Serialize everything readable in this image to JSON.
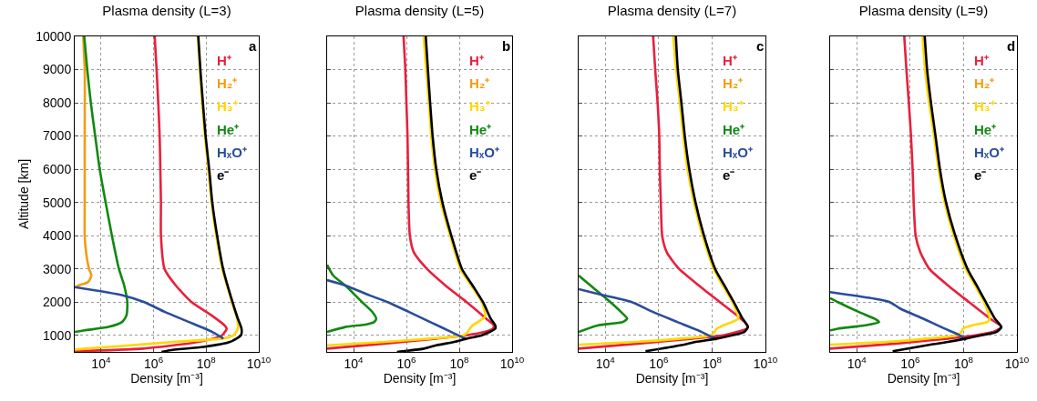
{
  "chart_data": [
    {
      "type": "line",
      "title": "Plasma density (L=3)",
      "xlabel": "Density [m⁻³]",
      "ylabel": "Altitude [km]",
      "log": "x",
      "grid": true,
      "legend": "top right",
      "annotations": [
        "a"
      ],
      "xlim": [
        1000,
        10000000000
      ],
      "xticks": [
        {
          "value": 10000,
          "label": "10$^{4}$"
        },
        {
          "value": 1000000,
          "label": "10$^{6}$"
        },
        {
          "value": 100000000,
          "label": "10$^{8}$"
        },
        {
          "value": 10000000000,
          "label": "10$^{10}$"
        }
      ],
      "ylim": [
        500,
        10000
      ],
      "yticks": [
        1000,
        2000,
        3000,
        4000,
        5000,
        6000,
        7000,
        8000,
        9000,
        10000
      ],
      "series": [
        {
          "name": "H⁺",
          "color": "#e8203c",
          "x": [
            1100000.0,
            1300000.0,
            1500000.0,
            1700000.0,
            1800000.0,
            1900000.0,
            1900000.0,
            2600000.0,
            7000000.0,
            28000000.0,
            160000000.0,
            500000000.0,
            600000000.0,
            400000000.0,
            50000000.0,
            400000.0,
            1000.0
          ],
          "values": [
            10000,
            9000,
            8000,
            7000,
            6000,
            5000,
            4000,
            3000,
            2500,
            2000,
            1600,
            1300,
            1200,
            1000,
            800,
            600,
            520
          ]
        },
        {
          "name": "H₂⁺",
          "color": "#f39c12",
          "x": [
            2100.0,
            2400.0,
            2400.0,
            2400.0,
            2400.0,
            2700.0,
            3500.0,
            4300.0,
            3200.0,
            1400.0,
            1000.0
          ],
          "values": [
            10000,
            9000,
            7000,
            5000,
            4000,
            3500,
            3000,
            2800,
            2600,
            2500,
            2430
          ]
        },
        {
          "name": "H₃⁺",
          "color": "#ffd700",
          "x": [
            48000000.0,
            58000000.0,
            70000000.0,
            90000000.0,
            120000000.0,
            160000000.0,
            240000000.0,
            410000000.0,
            950000000.0,
            1500000000.0,
            1600000000.0,
            1100000000.0,
            380000000.0,
            6000000.0,
            130000.0,
            2500.0,
            1000.0
          ],
          "values": [
            10000,
            9000,
            8000,
            7000,
            6000,
            5000,
            4000,
            3000,
            2000,
            1500,
            1200,
            1000,
            900,
            800,
            700,
            600,
            570
          ]
        },
        {
          "name": "He⁺",
          "color": "#118811",
          "x": [
            2300.0,
            3000.0,
            4100.0,
            6000.0,
            8900.0,
            15000.0,
            26000.0,
            48000.0,
            76000.0,
            100000.0,
            93000.0,
            63000.0,
            19000.0,
            2400.0,
            1000.0
          ],
          "values": [
            10000,
            9000,
            8000,
            7000,
            6000,
            5000,
            4000,
            3000,
            2500,
            2000,
            1600,
            1400,
            1250,
            1150,
            1100
          ]
        },
        {
          "name": "HₓO⁺",
          "color": "#2a4d9b",
          "x": [
            1000.0,
            70000.0,
            440000.0,
            2700000.0,
            22000000.0,
            170000000.0,
            450000000.0
          ],
          "values": [
            2450,
            2200,
            2000,
            1700,
            1400,
            1100,
            900
          ]
        },
        {
          "name": "e⁻",
          "color": "#000000",
          "x": [
            50000000.0,
            60000000.0,
            75000000.0,
            95000000.0,
            130000000.0,
            170000000.0,
            260000000.0,
            440000000.0,
            1000000000.0,
            1600000000.0,
            2200000000.0,
            2100000000.0,
            800000000.0,
            80000000.0,
            4000000.0,
            2000000.0
          ],
          "values": [
            10000,
            9000,
            8000,
            7000,
            6000,
            5000,
            4000,
            3000,
            2000,
            1500,
            1200,
            1000,
            800,
            650,
            550,
            500
          ]
        }
      ]
    },
    {
      "type": "line",
      "title": "Plasma density (L=5)",
      "xlabel": "Density [m⁻³]",
      "log": "x",
      "grid": true,
      "legend": "top right",
      "annotations": [
        "b"
      ],
      "tick_labels": "x",
      "xlim": [
        1000,
        10000000000
      ],
      "xticks": [
        {
          "value": 10000,
          "label": "10$^{4}$"
        },
        {
          "value": 1000000,
          "label": "10$^{6}$"
        },
        {
          "value": 100000000,
          "label": "10$^{8}$"
        },
        {
          "value": 10000000000,
          "label": "10$^{10}$"
        }
      ],
      "ylim": [
        500,
        10000
      ],
      "yticks": [
        1000,
        2000,
        3000,
        4000,
        5000,
        6000,
        7000,
        8000,
        9000,
        10000
      ],
      "series": [
        {
          "name": "H⁺",
          "color": "#e8203c",
          "x": [
            780000.0,
            910000.0,
            1000000.0,
            1100000.0,
            1150000.0,
            1200000.0,
            1350000.0,
            1900000.0,
            6000000.0,
            30000000.0,
            190000000.0,
            1050000000.0,
            2000000000.0,
            1900000000.0,
            900000000.0,
            190000000.0,
            13500000.0,
            150000.0,
            1000.0
          ],
          "values": [
            10000,
            9000,
            8000,
            7000,
            6000,
            5000,
            4000,
            3500,
            3000,
            2500,
            2000,
            1500,
            1300,
            1200,
            1100,
            1000,
            900,
            750,
            600
          ]
        },
        {
          "name": "H₂⁺",
          "color": "#f39c12"
        },
        {
          "name": "H₃⁺",
          "color": "#ffd700",
          "x": [
            4500000.0,
            5600000.0,
            7100000.0,
            8700000.0,
            12000000.0,
            20000000.0,
            45000000.0,
            110000000.0,
            280000000.0,
            710000000.0,
            950000000.0,
            320000000.0,
            250000000.0,
            210000000.0,
            145000000.0,
            7900000.0,
            150000.0,
            1000.0
          ],
          "values": [
            10000,
            9000,
            8000,
            7000,
            6000,
            5000,
            4000,
            3000,
            2500,
            2000,
            1570,
            1300,
            1200,
            1100,
            1000,
            900,
            800,
            700
          ]
        },
        {
          "name": "He⁺",
          "color": "#118811",
          "x": [
            1000.0,
            1700.0,
            4900.0,
            21000.0,
            52000.0,
            72000.0,
            60000.0,
            31000.0,
            4900.0,
            1000.0
          ],
          "values": [
            3120,
            2800,
            2500,
            2000,
            1700,
            1500,
            1400,
            1330,
            1250,
            1100
          ]
        },
        {
          "name": "HₓO⁺",
          "color": "#2a4d9b",
          "x": [
            1000.0,
            4900.0,
            41000.0,
            195000.0,
            1260000.0,
            7900000.0,
            50000000.0,
            170000000.0
          ],
          "values": [
            2660,
            2500,
            2200,
            2000,
            1700,
            1400,
            1100,
            900
          ]
        },
        {
          "name": "e⁻",
          "color": "#000000",
          "x": [
            5400000.0,
            6500000.0,
            7900000.0,
            9800000.0,
            13500000.0,
            23000000.0,
            50000000.0,
            126000000.0,
            320000000.0,
            790000000.0,
            1550000000.0,
            2300000000.0,
            2300000000.0,
            710000000.0,
            190000000.0,
            65000000.0,
            13500000.0,
            4700000.0,
            440000.0
          ],
          "values": [
            10000,
            9000,
            8000,
            7000,
            6000,
            5000,
            4000,
            3000,
            2500,
            2000,
            1500,
            1300,
            1200,
            1000,
            900,
            800,
            700,
            600,
            500
          ]
        }
      ]
    },
    {
      "type": "line",
      "title": "Plasma density (L=7)",
      "xlabel": "Density [m⁻³]",
      "log": "x",
      "grid": true,
      "legend": "top right",
      "annotations": [
        "c"
      ],
      "tick_labels": "x",
      "xlim": [
        1000,
        10000000000
      ],
      "xticks": [
        {
          "value": 10000,
          "label": "10$^{4}$"
        },
        {
          "value": 1000000,
          "label": "10$^{6}$"
        },
        {
          "value": 100000000,
          "label": "10$^{8}$"
        },
        {
          "value": 10000000000,
          "label": "10$^{10}$"
        }
      ],
      "ylim": [
        500,
        10000
      ],
      "yticks": [
        1000,
        2000,
        3000,
        4000,
        5000,
        6000,
        7000,
        8000,
        9000,
        10000
      ],
      "series": [
        {
          "name": "H⁺",
          "color": "#e8203c",
          "x": [
            620000.0,
            740000.0,
            910000.0,
            1050000.0,
            1100000.0,
            1200000.0,
            1350000.0,
            2000000.0,
            5800000.0,
            32000000.0,
            195000000.0,
            1200000000.0,
            2100000000.0,
            2000000000.0,
            260000000.0,
            19000000.0,
            170000.0,
            1000.0
          ],
          "values": [
            10000,
            9000,
            8000,
            7000,
            6000,
            5000,
            4000,
            3500,
            3000,
            2500,
            2000,
            1500,
            1300,
            1200,
            1000,
            900,
            750,
            600
          ]
        },
        {
          "name": "H₂⁺",
          "color": "#f39c12"
        },
        {
          "name": "H₃⁺",
          "color": "#ffd700",
          "x": [
            3500000.0,
            4500000.0,
            6200000.0,
            8300000.0,
            12000000.0,
            21000000.0,
            44000000.0,
            115000000.0,
            250000000.0,
            580000000.0,
            950000000.0,
            260000000.0,
            150000000.0,
            120000000.0,
            89000000.0,
            6500000.0,
            130000.0,
            1000.0
          ],
          "values": [
            10000,
            9000,
            8000,
            7000,
            6000,
            5000,
            4000,
            3000,
            2500,
            2000,
            1500,
            1300,
            1200,
            1100,
            1000,
            900,
            800,
            720
          ]
        },
        {
          "name": "He⁺",
          "color": "#118811",
          "x": [
            1000.0,
            2800.0,
            15500.0,
            39000.0,
            66000.0,
            45000.0,
            5500.0,
            1000.0
          ],
          "values": [
            2800,
            2500,
            2000,
            1700,
            1500,
            1400,
            1300,
            1100
          ]
        },
        {
          "name": "HₓO⁺",
          "color": "#2a4d9b",
          "x": [
            1000.0,
            9300.0,
            98000.0,
            620000.0,
            5000000.0,
            41000000.0,
            150000000.0
          ],
          "values": [
            2390,
            2200,
            2000,
            1700,
            1400,
            1100,
            870
          ]
        },
        {
          "name": "e⁻",
          "color": "#000000",
          "x": [
            4400000.0,
            5200000.0,
            7100000.0,
            9500000.0,
            14000000.0,
            24000000.0,
            50000000.0,
            130000000.0,
            290000000.0,
            650000000.0,
            1400000000.0,
            2200000000.0,
            1600000000.0,
            560000000.0,
            150000000.0,
            24000000.0,
            6500000.0,
            320000.0
          ],
          "values": [
            10000,
            9000,
            8000,
            7000,
            6000,
            5000,
            4000,
            3000,
            2500,
            2000,
            1500,
            1250,
            1100,
            1000,
            900,
            800,
            700,
            520
          ]
        }
      ]
    },
    {
      "type": "line",
      "title": "Plasma density (L=9)",
      "xlabel": "Density [m⁻³]",
      "log": "x",
      "grid": true,
      "legend": "top right",
      "annotations": [
        "d"
      ],
      "tick_labels": "x",
      "xlim": [
        1000,
        10000000000
      ],
      "xticks": [
        {
          "value": 10000,
          "label": "10$^{4}$"
        },
        {
          "value": 1000000,
          "label": "10$^{6}$"
        },
        {
          "value": 100000000,
          "label": "10$^{8}$"
        },
        {
          "value": 10000000000,
          "label": "10$^{10}$"
        }
      ],
      "ylim": [
        500,
        10000
      ],
      "yticks": [
        1000,
        2000,
        3000,
        4000,
        5000,
        6000,
        7000,
        8000,
        9000,
        10000
      ],
      "series": [
        {
          "name": "H⁺",
          "color": "#e8203c",
          "x": [
            600000.0,
            720000.0,
            890000.0,
            1070000.0,
            1230000.0,
            1350000.0,
            1600000.0,
            2400000.0,
            5200000.0,
            26000000.0,
            160000000.0,
            1000000000.0,
            2600000000.0,
            1300000000.0,
            270000000.0,
            26000000.0,
            300000.0,
            1000.0
          ],
          "values": [
            10000,
            9000,
            8000,
            7000,
            6000,
            5000,
            4000,
            3500,
            3000,
            2500,
            2000,
            1500,
            1250,
            1100,
            1000,
            900,
            750,
            600
          ]
        },
        {
          "name": "H₂⁺",
          "color": "#f39c12"
        },
        {
          "name": "H₃⁺",
          "color": "#ffd700",
          "x": [
            2900000.0,
            3600000.0,
            5100000.0,
            7800000.0,
            11500000.0,
            19500000.0,
            43000000.0,
            120000000.0,
            270000000.0,
            590000000.0,
            950000000.0,
            780000000.0,
            210000000.0,
            95000000.0,
            83000000.0,
            56000000.0,
            4100000.0,
            130000.0,
            1000.0
          ],
          "values": [
            10000,
            9000,
            8000,
            7000,
            6000,
            5000,
            4000,
            3000,
            2500,
            2000,
            1500,
            1400,
            1300,
            1200,
            1100,
            1000,
            900,
            800,
            720
          ]
        },
        {
          "name": "He⁺",
          "color": "#118811",
          "x": [
            1000.0,
            1950.0,
            12000.0,
            46000.0,
            68000.0,
            21000.0,
            1950.0,
            1000.0
          ],
          "values": [
            2120,
            2000,
            1700,
            1500,
            1400,
            1300,
            1200,
            1150
          ]
        },
        {
          "name": "HₓO⁺",
          "color": "#2a4d9b",
          "x": [
            1000.0,
            46000.0,
            170000.0,
            430000.0,
            3100000.0,
            19500000.0,
            72000000.0,
            120000000.0
          ],
          "values": [
            2300,
            2100,
            2000,
            1800,
            1500,
            1200,
            1000,
            850
          ]
        },
        {
          "name": "e⁻",
          "color": "#000000",
          "x": [
            3500000.0,
            4300000.0,
            6000000.0,
            8900000.0,
            13000000.0,
            22000000.0,
            49000000.0,
            140000000.0,
            310000000.0,
            680000000.0,
            1500000000.0,
            2600000000.0,
            1700000000.0,
            460000000.0,
            120000000.0,
            26000000.0,
            4100000.0,
            220000.0
          ],
          "values": [
            10000,
            9000,
            8000,
            7000,
            6000,
            5000,
            4000,
            3000,
            2500,
            2000,
            1500,
            1250,
            1100,
            1000,
            900,
            800,
            700,
            520
          ]
        }
      ]
    }
  ]
}
